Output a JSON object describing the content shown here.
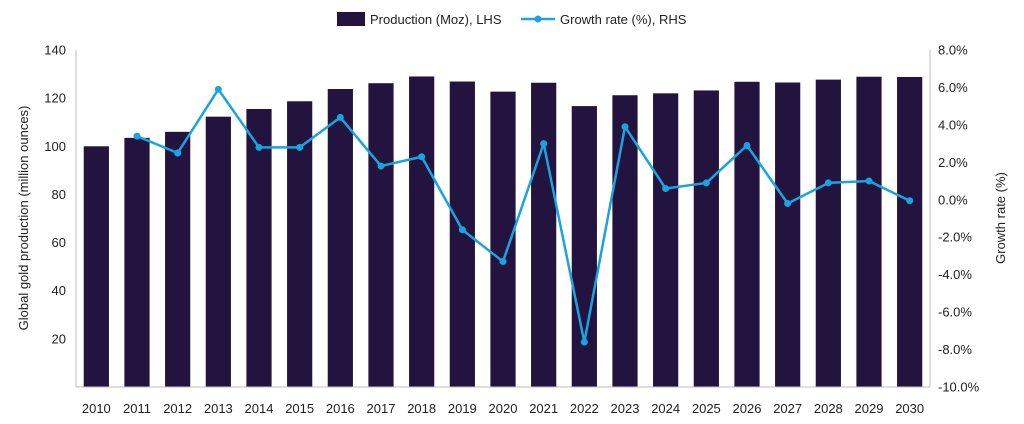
{
  "chart_data": {
    "type": "bar",
    "categories": [
      "2010",
      "2011",
      "2012",
      "2013",
      "2014",
      "2015",
      "2016",
      "2017",
      "2018",
      "2019",
      "2020",
      "2021",
      "2022",
      "2023",
      "2024",
      "2025",
      "2026",
      "2027",
      "2028",
      "2029",
      "2030"
    ],
    "series": [
      {
        "name": "Production (Moz), LHS",
        "type": "bar",
        "axis": "left",
        "color": "#23133f",
        "values": [
          100,
          103.5,
          106,
          112.3,
          115.5,
          118.7,
          123.8,
          126.2,
          129,
          126.9,
          122.7,
          126.4,
          116.7,
          121.2,
          122,
          123.2,
          126.8,
          126.5,
          127.7,
          128.9,
          128.8
        ]
      },
      {
        "name": "Growth rate (%), RHS",
        "type": "line",
        "axis": "right",
        "color": "#1aa3e0",
        "values": [
          null,
          3.4,
          2.5,
          5.9,
          2.8,
          2.8,
          4.4,
          1.8,
          2.3,
          -1.6,
          -3.3,
          3.0,
          -7.6,
          3.9,
          0.6,
          0.9,
          2.9,
          -0.2,
          0.9,
          1.0,
          -0.05
        ]
      }
    ],
    "ylabel_left": "Global gold production (million ounces)",
    "ylabel_right": "Growth rate (%)",
    "ylim_left": [
      0,
      140
    ],
    "ylim_right": [
      -10,
      8
    ],
    "yticks_left": [
      "20",
      "40",
      "60",
      "80",
      "100",
      "120",
      "140"
    ],
    "yticks_right": [
      "8.0%",
      "6.0%",
      "4.0%",
      "2.0%",
      "0.0%",
      "-2.0%",
      "-4.0%",
      "-6.0%",
      "-8.0%",
      "-10.0%"
    ],
    "grid": false,
    "legend_position": "top-center"
  }
}
